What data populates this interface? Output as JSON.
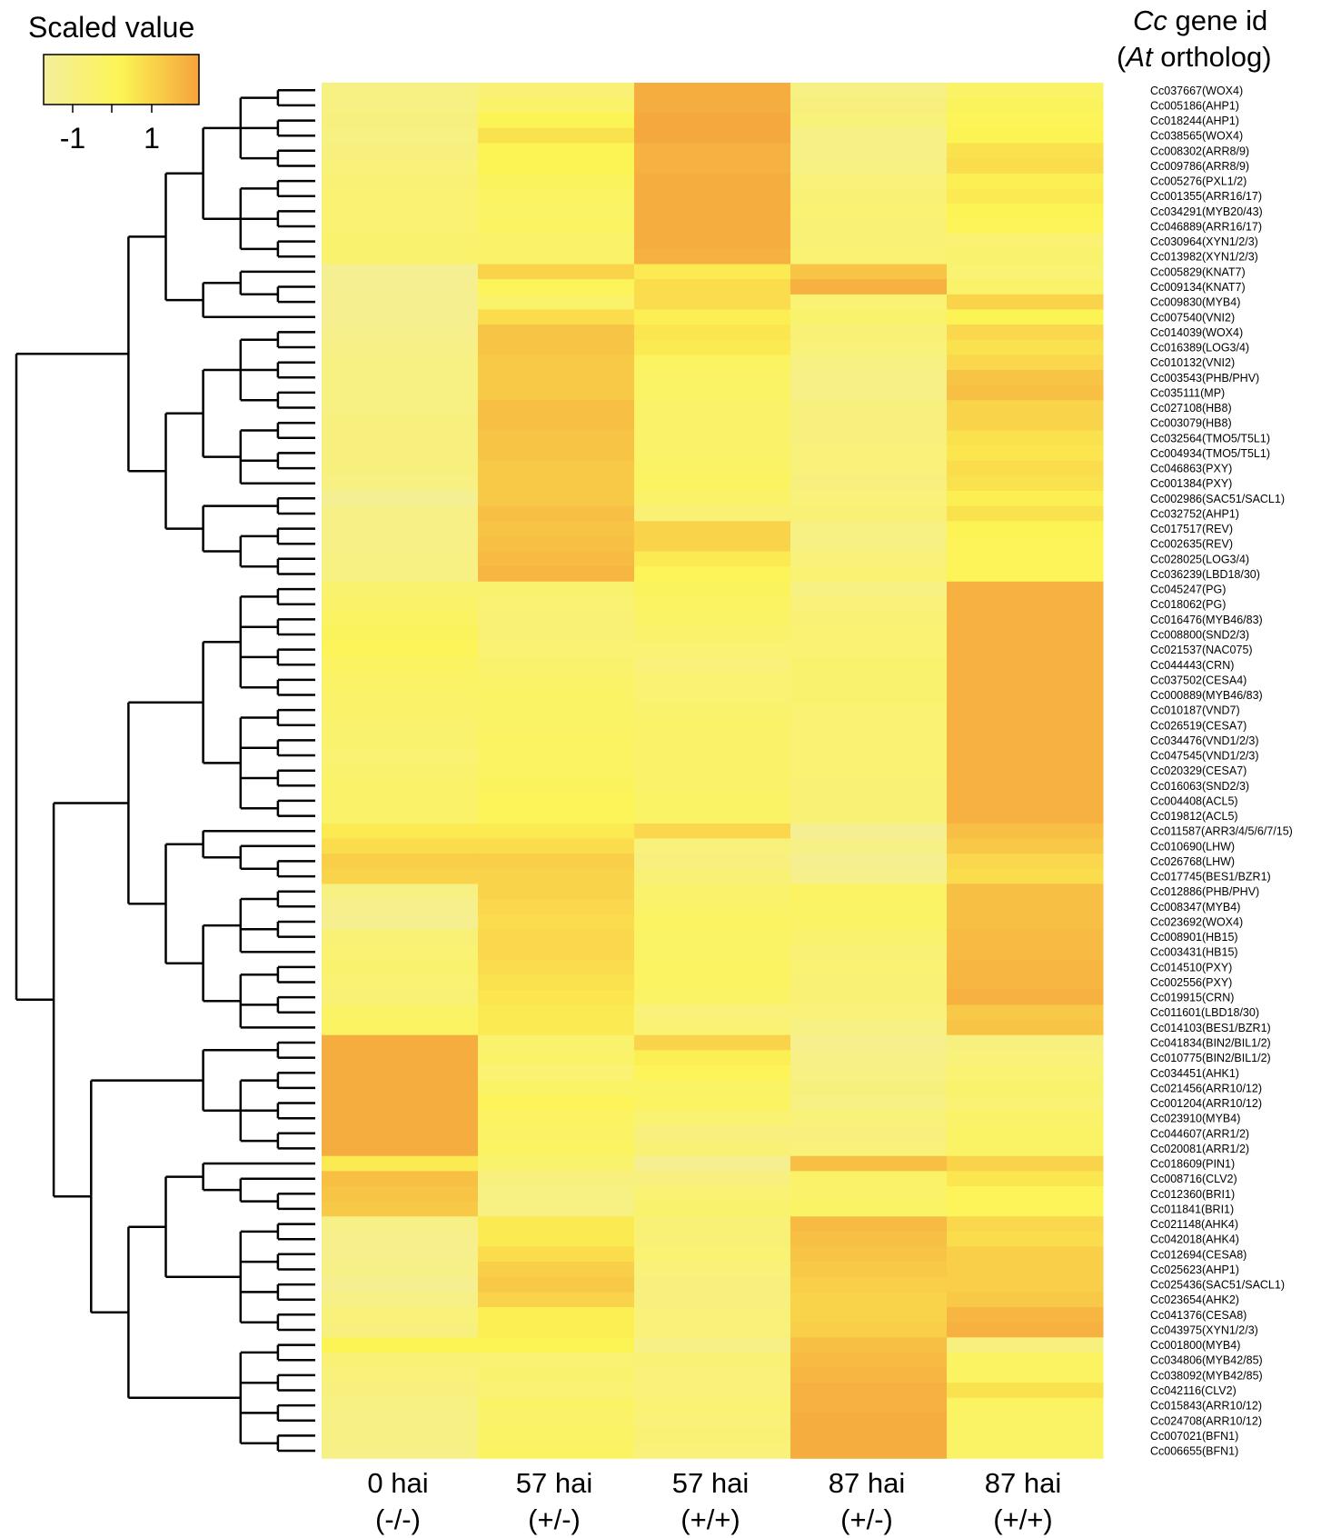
{
  "legend": {
    "title": "Scaled value",
    "tick_labels": [
      "-1",
      "1"
    ],
    "colors": [
      "#f4ee9c",
      "#fcf454",
      "#f5a33c"
    ]
  },
  "header": {
    "line1_italic": "Cc",
    "line1_rest": " gene id",
    "line2_open": "(",
    "line2_italic": "At",
    "line2_rest": " ortholog)"
  },
  "chart_data": {
    "type": "heatmap",
    "title": "",
    "value_range": [
      -1.6,
      1.8
    ],
    "columns": [
      {
        "top": "0 hai",
        "bottom": "(-/-)"
      },
      {
        "top": "57 hai",
        "bottom": "(+/-)"
      },
      {
        "top": "57 hai",
        "bottom": "(+/+)"
      },
      {
        "top": "87 hai",
        "bottom": "(+/-)"
      },
      {
        "top": "87 hai",
        "bottom": "(+/+)"
      }
    ],
    "rows": [
      "Cc037667(WOX4)",
      "Cc005186(AHP1)",
      "Cc018244(AHP1)",
      "Cc038565(WOX4)",
      "Cc008302(ARR8/9)",
      "Cc009786(ARR8/9)",
      "Cc005276(PXL1/2)",
      "Cc001355(ARR16/17)",
      "Cc034291(MYB20/43)",
      "Cc046889(ARR16/17)",
      "Cc030964(XYN1/2/3)",
      "Cc013982(XYN1/2/3)",
      "Cc005829(KNAT7)",
      "Cc009134(KNAT7)",
      "Cc009830(MYB4)",
      "Cc007540(VNI2)",
      "Cc014039(WOX4)",
      "Cc016389(LOG3/4)",
      "Cc010132(VNI2)",
      "Cc003543(PHB/PHV)",
      "Cc035111(MP)",
      "Cc027108(HB8)",
      "Cc003079(HB8)",
      "Cc032564(TMO5/T5L1)",
      "Cc004934(TMO5/T5L1)",
      "Cc046863(PXY)",
      "Cc001384(PXY)",
      "Cc002986(SAC51/SACL1)",
      "Cc032752(AHP1)",
      "Cc017517(REV)",
      "Cc002635(REV)",
      "Cc028025(LOG3/4)",
      "Cc036239(LBD18/30)",
      "Cc045247(PG)",
      "Cc018062(PG)",
      "Cc016476(MYB46/83)",
      "Cc008800(SND2/3)",
      "Cc021537(NAC075)",
      "Cc044443(CRN)",
      "Cc037502(CESA4)",
      "Cc000889(MYB46/83)",
      "Cc010187(VND7)",
      "Cc026519(CESA7)",
      "Cc034476(VND1/2/3)",
      "Cc047545(VND1/2/3)",
      "Cc020329(CESA7)",
      "Cc016063(SND2/3)",
      "Cc004408(ACL5)",
      "Cc019812(ACL5)",
      "Cc011587(ARR3/4/5/6/7/15)",
      "Cc010690(LHW)",
      "Cc026768(LHW)",
      "Cc017745(BES1/BZR1)",
      "Cc012886(PHB/PHV)",
      "Cc008347(MYB4)",
      "Cc023692(WOX4)",
      "Cc008901(HB15)",
      "Cc003431(HB15)",
      "Cc014510(PXY)",
      "Cc002556(PXY)",
      "Cc019915(CRN)",
      "Cc011601(LBD18/30)",
      "Cc014103(BES1/BZR1)",
      "Cc041834(BIN2/BIL1/2)",
      "Cc010775(BIN2/BIL1/2)",
      "Cc034451(AHK1)",
      "Cc021456(ARR10/12)",
      "Cc001204(ARR10/12)",
      "Cc023910(MYB4)",
      "Cc044607(ARR1/2)",
      "Cc020081(ARR1/2)",
      "Cc018609(PIN1)",
      "Cc008716(CLV2)",
      "Cc012360(BRI1)",
      "Cc011841(BRI1)",
      "Cc021148(AHK4)",
      "Cc042018(AHK4)",
      "Cc012694(CESA8)",
      "Cc025623(AHP1)",
      "Cc025436(SAC51/SACL1)",
      "Cc023654(AHK2)",
      "Cc041376(CESA8)",
      "Cc043975(XYN1/2/3)",
      "Cc001800(MYB4)",
      "Cc034806(MYB42/85)",
      "Cc038092(MYB42/85)",
      "Cc042116(CLV2)",
      "Cc015843(ARR10/12)",
      "Cc024708(ARR10/12)",
      "Cc007021(BFN1)",
      "Cc006655(BFN1)"
    ],
    "values": [
      [
        -1.0,
        -0.7,
        1.6,
        -1.0,
        -0.3
      ],
      [
        -1.0,
        -0.4,
        1.6,
        -0.9,
        -0.1
      ],
      [
        -0.9,
        0.1,
        1.7,
        -0.8,
        0.0
      ],
      [
        -1.0,
        0.5,
        1.7,
        -1.1,
        0.1
      ],
      [
        -0.9,
        0.1,
        1.5,
        -1.1,
        0.5
      ],
      [
        -0.8,
        0.1,
        1.5,
        -1.0,
        0.6
      ],
      [
        -0.7,
        -0.1,
        1.6,
        -0.8,
        0.2
      ],
      [
        -0.6,
        -0.2,
        1.6,
        -0.7,
        0.3
      ],
      [
        -0.6,
        -0.3,
        1.6,
        -0.6,
        0.1
      ],
      [
        -0.6,
        -0.2,
        1.6,
        -0.7,
        0.0
      ],
      [
        -0.5,
        -0.4,
        1.6,
        -0.7,
        -0.6
      ],
      [
        -0.5,
        -0.4,
        1.5,
        -0.6,
        -0.5
      ],
      [
        -1.4,
        0.8,
        0.3,
        1.1,
        -0.6
      ],
      [
        -1.3,
        0.0,
        0.6,
        1.5,
        -0.4
      ],
      [
        -1.3,
        -0.4,
        0.6,
        -0.6,
        0.8
      ],
      [
        -1.3,
        0.6,
        0.2,
        -0.5,
        0.1
      ],
      [
        -1.2,
        1.1,
        0.4,
        -0.7,
        0.7
      ],
      [
        -1.1,
        1.1,
        0.3,
        -0.8,
        0.5
      ],
      [
        -1.0,
        1.0,
        -0.2,
        -1.0,
        0.7
      ],
      [
        -1.0,
        1.0,
        -0.3,
        -1.1,
        1.1
      ],
      [
        -1.0,
        1.0,
        -0.3,
        -1.1,
        1.2
      ],
      [
        -1.0,
        1.2,
        -0.4,
        -0.9,
        0.8
      ],
      [
        -0.9,
        1.2,
        -0.4,
        -0.9,
        0.8
      ],
      [
        -0.9,
        1.1,
        -0.4,
        -0.9,
        0.5
      ],
      [
        -0.9,
        1.1,
        -0.4,
        -0.8,
        0.4
      ],
      [
        -0.9,
        1.0,
        -0.3,
        -0.8,
        0.6
      ],
      [
        -1.0,
        1.0,
        -0.2,
        -0.9,
        0.5
      ],
      [
        -1.4,
        1.0,
        -0.4,
        -0.8,
        0.2
      ],
      [
        -1.1,
        1.2,
        -0.7,
        -0.7,
        0.5
      ],
      [
        -1.1,
        1.1,
        0.8,
        -1.0,
        0.1
      ],
      [
        -1.1,
        1.2,
        0.8,
        -1.0,
        0.0
      ],
      [
        -1.0,
        1.3,
        0.3,
        -0.8,
        0.0
      ],
      [
        -1.0,
        1.4,
        0.0,
        -0.6,
        0.0
      ],
      [
        -0.5,
        -0.5,
        -0.1,
        -1.0,
        1.5
      ],
      [
        -0.4,
        -0.6,
        -0.2,
        -0.8,
        1.5
      ],
      [
        -0.2,
        -0.7,
        -0.3,
        -0.7,
        1.5
      ],
      [
        -0.1,
        -0.7,
        -0.5,
        -0.6,
        1.5
      ],
      [
        0.0,
        -0.6,
        -0.6,
        -0.6,
        1.5
      ],
      [
        -0.2,
        -0.5,
        -0.8,
        -0.5,
        1.5
      ],
      [
        -0.3,
        -0.4,
        -0.6,
        -0.5,
        1.5
      ],
      [
        -0.4,
        -0.3,
        -0.6,
        -0.5,
        1.5
      ],
      [
        -0.4,
        -0.3,
        -0.5,
        -0.6,
        1.5
      ],
      [
        -0.5,
        -0.3,
        -0.4,
        -0.6,
        1.5
      ],
      [
        -0.5,
        -0.2,
        -0.4,
        -0.6,
        1.5
      ],
      [
        -0.6,
        -0.2,
        -0.4,
        -0.6,
        1.5
      ],
      [
        -0.5,
        -0.2,
        -0.4,
        -0.6,
        1.5
      ],
      [
        -0.4,
        -0.1,
        -0.4,
        -0.7,
        1.5
      ],
      [
        -0.4,
        0.0,
        -0.3,
        -0.7,
        1.5
      ],
      [
        -0.4,
        0.0,
        -0.3,
        -0.7,
        1.5
      ],
      [
        0.3,
        0.3,
        0.7,
        -1.4,
        1.2
      ],
      [
        0.6,
        0.6,
        -0.8,
        -1.1,
        1.0
      ],
      [
        0.9,
        0.9,
        -0.9,
        -1.3,
        0.7
      ],
      [
        0.8,
        0.8,
        -0.7,
        -1.2,
        0.6
      ],
      [
        -1.0,
        0.8,
        -0.5,
        -0.2,
        1.2
      ],
      [
        -1.2,
        0.7,
        -0.4,
        -0.3,
        1.2
      ],
      [
        -1.3,
        0.6,
        -0.2,
        -0.3,
        1.2
      ],
      [
        -0.7,
        0.7,
        -0.3,
        -0.5,
        1.3
      ],
      [
        -0.6,
        0.7,
        -0.3,
        -0.7,
        1.3
      ],
      [
        -0.5,
        0.6,
        -0.2,
        -0.6,
        1.4
      ],
      [
        -0.6,
        0.5,
        -0.2,
        -0.7,
        1.4
      ],
      [
        -0.7,
        0.4,
        -0.3,
        -0.7,
        1.5
      ],
      [
        -0.3,
        0.3,
        -0.8,
        -0.8,
        1.0
      ],
      [
        -0.2,
        0.3,
        -0.6,
        -1.0,
        1.1
      ],
      [
        1.6,
        -0.5,
        0.8,
        -1.2,
        -0.9
      ],
      [
        1.6,
        -0.4,
        0.2,
        -1.1,
        -0.8
      ],
      [
        1.6,
        -0.6,
        0.0,
        -1.0,
        -0.6
      ],
      [
        1.6,
        -0.3,
        -0.3,
        -0.9,
        -0.5
      ],
      [
        1.6,
        0.0,
        -0.2,
        -1.0,
        -0.6
      ],
      [
        1.6,
        -0.2,
        -0.6,
        -0.8,
        -0.4
      ],
      [
        1.6,
        -0.3,
        -0.9,
        -0.9,
        -0.3
      ],
      [
        1.6,
        -0.2,
        -0.7,
        -0.8,
        -0.3
      ],
      [
        0.3,
        -0.5,
        -1.3,
        1.2,
        0.8
      ],
      [
        1.2,
        -0.9,
        -0.9,
        -0.4,
        0.4
      ],
      [
        1.1,
        -1.0,
        -0.6,
        -0.4,
        0.0
      ],
      [
        1.0,
        -1.0,
        -0.5,
        -0.3,
        0.0
      ],
      [
        -1.1,
        0.3,
        -0.7,
        1.3,
        0.7
      ],
      [
        -1.2,
        0.3,
        -0.7,
        1.2,
        0.6
      ],
      [
        -1.2,
        0.6,
        -0.6,
        1.1,
        0.9
      ],
      [
        -1.1,
        0.9,
        -0.8,
        1.0,
        0.9
      ],
      [
        -1.3,
        1.0,
        -0.9,
        0.9,
        0.9
      ],
      [
        -1.1,
        0.8,
        -0.9,
        0.8,
        1.0
      ],
      [
        -0.8,
        0.2,
        -0.8,
        0.8,
        1.4
      ],
      [
        -0.9,
        0.2,
        -0.8,
        0.9,
        1.5
      ],
      [
        0.1,
        0.1,
        -1.1,
        1.2,
        -0.9
      ],
      [
        -0.7,
        -0.6,
        -0.7,
        1.3,
        -0.2
      ],
      [
        -0.8,
        -0.5,
        -0.8,
        1.4,
        -0.2
      ],
      [
        -0.9,
        -0.6,
        -0.8,
        1.5,
        0.5
      ],
      [
        -1.0,
        -0.3,
        -0.6,
        1.5,
        -0.2
      ],
      [
        -1.1,
        -0.4,
        -0.8,
        1.6,
        -0.3
      ],
      [
        -1.0,
        -0.3,
        -0.7,
        1.6,
        -0.3
      ],
      [
        -1.1,
        -0.2,
        -0.8,
        1.6,
        -0.3
      ]
    ],
    "row_order": "as shown top to bottom, with hierarchical clustering dendrogram on left"
  }
}
